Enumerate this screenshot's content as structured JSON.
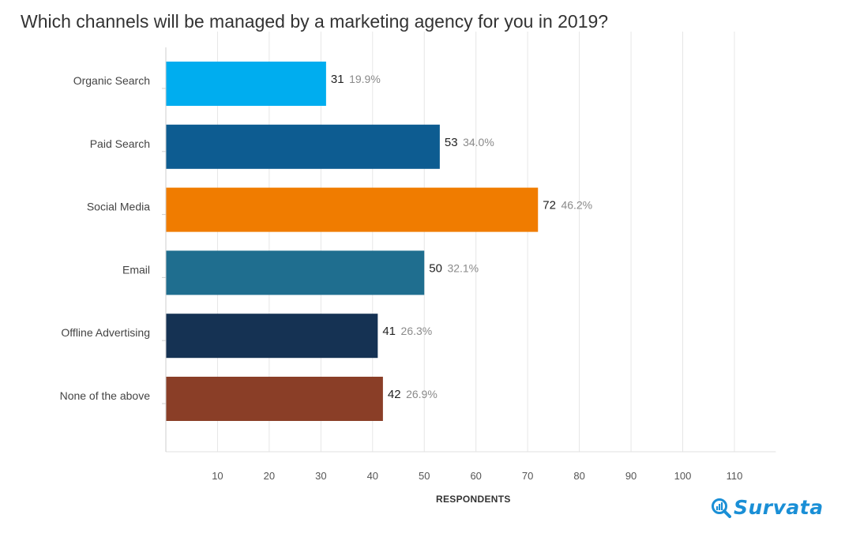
{
  "chart_data": {
    "type": "bar",
    "orientation": "horizontal",
    "title": "Which channels will be managed by a marketing agency for you in 2019?",
    "xlabel": "RESPONDENTS",
    "xlim": [
      0,
      118
    ],
    "xticks": [
      10,
      20,
      30,
      40,
      50,
      60,
      70,
      80,
      90,
      100,
      110
    ],
    "grid": "vertical",
    "categories": [
      "Organic Search",
      "Paid Search",
      "Social Media",
      "Email",
      "Offline Advertising",
      "None of the above"
    ],
    "values": [
      31,
      53,
      72,
      50,
      41,
      42
    ],
    "percent_labels": [
      "19.9%",
      "34.0%",
      "46.2%",
      "32.1%",
      "26.3%",
      "26.9%"
    ],
    "colors": [
      "#00adef",
      "#0d5c91",
      "#f07c00",
      "#1f6e8f",
      "#153253",
      "#8a3e27"
    ]
  },
  "brand": {
    "name": "Survata",
    "color": "#1a8fd6"
  }
}
